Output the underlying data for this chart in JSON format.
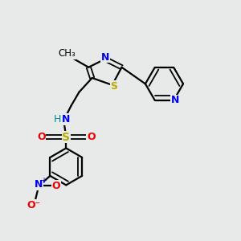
{
  "bg_color": "#e8eaea",
  "bond_color": "#000000",
  "N_color": "#0000ee",
  "S_color": "#bbaa00",
  "O_color": "#ee0000",
  "N_teal_color": "#009090",
  "figsize": [
    3.0,
    3.0
  ],
  "dpi": 100,
  "xlim": [
    0,
    10
  ],
  "ylim": [
    0,
    10
  ]
}
